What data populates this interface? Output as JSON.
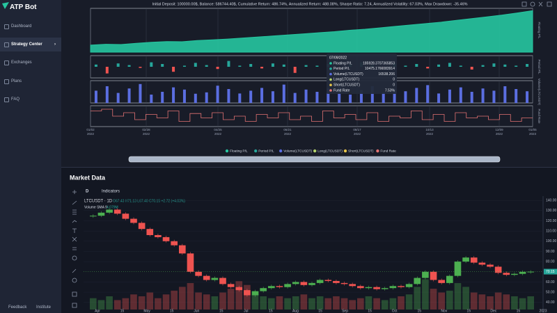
{
  "sidebar": {
    "brand": "ATP Bot",
    "menu": [
      "Dashboard",
      "Strategy Center",
      "Exchanges",
      "Plans",
      "FAQ"
    ],
    "footer": [
      "Feedback",
      "Institute"
    ]
  },
  "backtest": {
    "summary": "Initial Deposit: 100000.00$, Balance: 586744.40$, Cumulative Return: 486.74%, Annualized Return: 488.08%, Sharpe Ratio: 7.24, Annualized Volatility: 67.03%, Max Drawdown: -35.46%",
    "panels": [
      {
        "label": "Floating P/L",
        "type": "area",
        "color": "#26c6a0",
        "ylim": [
          0,
          620000
        ],
        "values": [
          100000,
          112000,
          108000,
          125000,
          140000,
          150000,
          148000,
          165000,
          175000,
          185928,
          200000,
          215000,
          230000,
          245000,
          260000,
          275000,
          290000,
          310000,
          325000,
          345000,
          365000,
          385000,
          405000,
          425000,
          450000,
          475000,
          500000,
          525000,
          555000,
          586744
        ]
      },
      {
        "label": "Period P/L",
        "type": "bar",
        "color": "#26a69a",
        "neg_color": "#ef5350",
        "ylim": [
          -20000,
          20000
        ],
        "values": [
          4000,
          -12000,
          6000,
          3000,
          -2000,
          8000,
          5000,
          -9000,
          2000,
          7000,
          3000,
          -4000,
          10475,
          2000,
          5000,
          -3000,
          6000,
          4000,
          -11000,
          3000,
          2000,
          5000,
          -6000,
          4000,
          8000,
          3000,
          -2000,
          6000,
          2000,
          5000,
          -3000,
          4000,
          7000,
          2000,
          -5000,
          3000,
          6000,
          4000,
          2000,
          5000
        ]
      },
      {
        "label": "Volume(LTCUSDT)",
        "type": "bar",
        "color": "#5b6ee1",
        "ylim": [
          0,
          40000
        ],
        "values": [
          22000,
          30000,
          18000,
          26000,
          34000,
          15000,
          20000,
          28000,
          24000,
          16538,
          19000,
          31000,
          25000,
          17000,
          22000,
          27000,
          21000,
          33000,
          18000,
          24000,
          20000,
          26000,
          29000,
          15000,
          23000,
          30000,
          19000,
          25000,
          21000,
          27000,
          32000,
          17000,
          24000,
          28000,
          20000,
          26000,
          22000,
          30000,
          25000,
          21000
        ]
      },
      {
        "label": "Fund Rate",
        "type": "step",
        "color": "#e57373",
        "ylim": [
          0,
          12
        ],
        "values": [
          9,
          10,
          6,
          8,
          4,
          7,
          5,
          9,
          3,
          7.53,
          5,
          8,
          4,
          6,
          3,
          7,
          5,
          8,
          4,
          6,
          3,
          9,
          5,
          7,
          4,
          8,
          3,
          6,
          5,
          9,
          4,
          7,
          3,
          8,
          5,
          6,
          4,
          7,
          3,
          5
        ]
      }
    ],
    "dates": [
      {
        "day": "01/02",
        "year": "2022"
      },
      {
        "day": "02/28",
        "year": "2022"
      },
      {
        "day": "04/25",
        "year": "2022"
      },
      {
        "day": "06/21",
        "year": "2022"
      },
      {
        "day": "08/17",
        "year": "2022"
      },
      {
        "day": "10/13",
        "year": "2022"
      },
      {
        "day": "12/09",
        "year": "2022"
      },
      {
        "day": "01/05",
        "year": "2023"
      }
    ],
    "tooltip": {
      "date": "07/09/2022",
      "rows": [
        {
          "name": "Floating P/L",
          "value": "185928.3707365853",
          "color": "#26c6a0"
        },
        {
          "name": "Period P/L",
          "value": "10475.1766083914",
          "color": "#26a69a"
        },
        {
          "name": "Volume(LTCUSDT)",
          "value": "16538.206",
          "color": "#5b6ee1"
        },
        {
          "name": "Long(LTCUSDT)",
          "value": "0",
          "color": "#b5d36b"
        },
        {
          "name": "Short(LTCUSDT)",
          "value": "0",
          "color": "#e6c449"
        },
        {
          "name": "Fund Rate",
          "value": "7.53%",
          "color": "#e57373"
        }
      ]
    },
    "legend": [
      {
        "name": "Floating P/L",
        "color": "#26c6a0"
      },
      {
        "name": "Period P/L",
        "color": "#26a69a"
      },
      {
        "name": "Volume(LTCUSDT)",
        "color": "#5b6ee1"
      },
      {
        "name": "Long(LTCUSDT)",
        "color": "#b5d36b"
      },
      {
        "name": "Short(LTCUSDT)",
        "color": "#e6c449"
      },
      {
        "name": "Fund Rate",
        "color": "#e57373"
      }
    ]
  },
  "market": {
    "title": "Market Data",
    "interval": "D",
    "indicators": "Indicators",
    "symbol": "LTCUSDT · 1D",
    "ohlc": "O67.43 H71.13 L67.40 C70.15 +2.72 (+4.03%)",
    "volume_label": "Volume SMA 9",
    "volume_value": "4.079M"
  },
  "chart_data": {
    "type": "candlestick",
    "categories": [
      "Apr",
      "15",
      "May",
      "15",
      "Jun",
      "15",
      "Jul",
      "15",
      "Aug",
      "15",
      "Sep",
      "15",
      "Oct",
      "15",
      "Nov",
      "15",
      "Dec",
      "15",
      "2023"
    ],
    "closes": [
      125,
      128,
      131,
      127,
      122,
      118,
      112,
      106,
      104,
      100,
      96,
      88,
      70,
      66,
      62,
      64,
      58,
      55,
      52,
      47,
      51,
      54,
      56,
      55,
      58,
      60,
      57,
      59,
      62,
      61,
      59,
      58,
      56,
      54,
      55,
      53,
      54,
      56,
      55,
      58,
      64,
      70,
      62,
      59,
      66,
      80,
      84,
      79,
      77,
      75,
      69,
      67,
      68,
      70,
      70.15
    ],
    "volumes": [
      6,
      5,
      7,
      5,
      6,
      8,
      7,
      9,
      6,
      8,
      10,
      12,
      14,
      9,
      8,
      7,
      9,
      11,
      15,
      13,
      8,
      7,
      6,
      7,
      6,
      7,
      8,
      6,
      7,
      6,
      7,
      6,
      5,
      6,
      7,
      6,
      5,
      6,
      7,
      8,
      12,
      16,
      11,
      9,
      10,
      14,
      12,
      9,
      8,
      7,
      9,
      8,
      7,
      6,
      7
    ],
    "vlim": [
      0,
      60
    ],
    "ylim": [
      33,
      144.2
    ],
    "yticks": [
      {
        "value": 140,
        "label": "140.00"
      },
      {
        "value": 130,
        "label": "130.00"
      },
      {
        "value": 120,
        "label": "120.00"
      },
      {
        "value": 110,
        "label": "110.00"
      },
      {
        "value": 100,
        "label": "100.00"
      },
      {
        "value": 90,
        "label": "90.00"
      },
      {
        "value": 80,
        "label": "80.00"
      },
      {
        "value": 60,
        "label": "60.00"
      },
      {
        "value": 50,
        "label": "50.00"
      },
      {
        "value": 40,
        "label": "40.00"
      }
    ],
    "last_price": {
      "value": 70.15,
      "label": "70.15"
    },
    "up_color": "#4caf50",
    "down_color": "#ef5350"
  }
}
